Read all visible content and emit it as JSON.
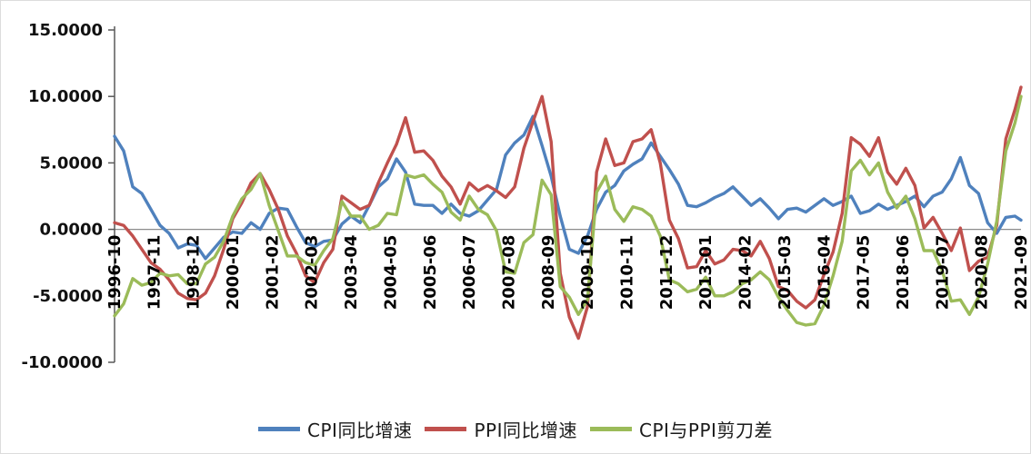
{
  "chart_data": {
    "type": "line",
    "title": "",
    "xlabel": "",
    "ylabel": "",
    "ylim": [
      -10,
      15
    ],
    "grid": false,
    "legend_position": "bottom",
    "y_ticks": [
      15,
      10,
      5,
      0,
      -5,
      -10
    ],
    "y_tick_labels": [
      "15.0000",
      "10.0000",
      "5.0000",
      "0.0000",
      "-5.0000",
      "-10.0000"
    ],
    "x_tick_labels": [
      "1996-10",
      "1997-11",
      "1998-12",
      "2000-01",
      "2001-02",
      "2002-03",
      "2003-04",
      "2004-05",
      "2005-06",
      "2006-07",
      "2007-08",
      "2008-09",
      "2009-10",
      "2010-11",
      "2011-12",
      "2013-01",
      "2014-02",
      "2015-03",
      "2016-04",
      "2017-05",
      "2018-06",
      "2019-07",
      "2020-08",
      "2021-09"
    ],
    "x_range_months": [
      "1996-10",
      "2021-09"
    ],
    "sample_dates": [
      "1996-10",
      "1997-01",
      "1997-04",
      "1997-07",
      "1997-10",
      "1998-01",
      "1998-04",
      "1998-07",
      "1998-10",
      "1999-01",
      "1999-04",
      "1999-07",
      "1999-10",
      "2000-01",
      "2000-04",
      "2000-07",
      "2000-10",
      "2001-01",
      "2001-04",
      "2001-07",
      "2001-10",
      "2002-01",
      "2002-04",
      "2002-07",
      "2002-10",
      "2003-01",
      "2003-04",
      "2003-07",
      "2003-10",
      "2004-01",
      "2004-04",
      "2004-07",
      "2004-10",
      "2005-01",
      "2005-04",
      "2005-07",
      "2005-10",
      "2006-01",
      "2006-04",
      "2006-07",
      "2006-10",
      "2007-01",
      "2007-04",
      "2007-07",
      "2007-10",
      "2008-01",
      "2008-04",
      "2008-07",
      "2008-10",
      "2009-01",
      "2009-04",
      "2009-07",
      "2009-10",
      "2010-01",
      "2010-04",
      "2010-07",
      "2010-10",
      "2011-01",
      "2011-04",
      "2011-07",
      "2011-10",
      "2012-01",
      "2012-04",
      "2012-07",
      "2012-10",
      "2013-01",
      "2013-04",
      "2013-07",
      "2013-10",
      "2014-01",
      "2014-04",
      "2014-07",
      "2014-10",
      "2015-01",
      "2015-04",
      "2015-07",
      "2015-10",
      "2016-01",
      "2016-04",
      "2016-07",
      "2016-10",
      "2017-01",
      "2017-04",
      "2017-07",
      "2017-10",
      "2018-01",
      "2018-04",
      "2018-07",
      "2018-10",
      "2019-01",
      "2019-04",
      "2019-07",
      "2019-10",
      "2020-01",
      "2020-04",
      "2020-07",
      "2020-10",
      "2021-01",
      "2021-04",
      "2021-07",
      "2021-09"
    ],
    "series": [
      {
        "name": "CPI同比增速",
        "color": "#4F81BD",
        "values": [
          7.0,
          5.9,
          3.2,
          2.7,
          1.5,
          0.3,
          -0.3,
          -1.4,
          -1.1,
          -1.2,
          -2.2,
          -1.4,
          -0.6,
          -0.2,
          -0.3,
          0.5,
          0.0,
          1.2,
          1.6,
          1.5,
          0.2,
          -1.0,
          -1.3,
          -0.9,
          -0.8,
          0.4,
          1.0,
          0.5,
          1.8,
          3.2,
          3.8,
          5.3,
          4.3,
          1.9,
          1.8,
          1.8,
          1.2,
          1.9,
          1.2,
          1.0,
          1.4,
          2.2,
          3.0,
          5.6,
          6.5,
          7.1,
          8.5,
          6.3,
          4.0,
          1.0,
          -1.5,
          -1.8,
          -0.5,
          1.5,
          2.8,
          3.3,
          4.4,
          4.9,
          5.3,
          6.5,
          5.5,
          4.5,
          3.4,
          1.8,
          1.7,
          2.0,
          2.4,
          2.7,
          3.2,
          2.5,
          1.8,
          2.3,
          1.6,
          0.8,
          1.5,
          1.6,
          1.3,
          1.8,
          2.3,
          1.8,
          2.1,
          2.5,
          1.2,
          1.4,
          1.9,
          1.5,
          1.8,
          2.1,
          2.5,
          1.7,
          2.5,
          2.8,
          3.8,
          5.4,
          3.3,
          2.7,
          0.5,
          -0.3,
          0.9,
          1.0,
          0.7
        ]
      },
      {
        "name": "PPI同比增速",
        "color": "#C0504D",
        "values": [
          0.5,
          0.3,
          -0.5,
          -1.5,
          -2.5,
          -3.0,
          -3.8,
          -4.8,
          -5.2,
          -5.3,
          -4.8,
          -3.5,
          -1.5,
          0.8,
          2.0,
          3.5,
          4.2,
          3.0,
          1.5,
          -0.5,
          -1.8,
          -3.5,
          -4.0,
          -2.5,
          -1.5,
          2.5,
          2.0,
          1.5,
          1.8,
          3.5,
          5.0,
          6.4,
          8.4,
          5.8,
          5.9,
          5.2,
          4.0,
          3.2,
          1.9,
          3.5,
          2.9,
          3.3,
          2.9,
          2.4,
          3.2,
          6.1,
          8.1,
          10.0,
          6.6,
          -3.3,
          -6.6,
          -8.2,
          -5.8,
          4.3,
          6.8,
          4.8,
          5.0,
          6.6,
          6.8,
          7.5,
          5.0,
          0.7,
          -0.7,
          -2.9,
          -2.8,
          -1.6,
          -2.6,
          -2.3,
          -1.5,
          -1.6,
          -2.0,
          -0.9,
          -2.2,
          -4.3,
          -4.6,
          -5.4,
          -5.9,
          -5.3,
          -3.4,
          -1.7,
          1.2,
          6.9,
          6.4,
          5.5,
          6.9,
          4.3,
          3.4,
          4.6,
          3.3,
          0.1,
          0.9,
          -0.3,
          -1.6,
          0.1,
          -3.1,
          -2.4,
          -2.1,
          0.3,
          6.8,
          9.0,
          10.7
        ]
      },
      {
        "name": "CPI与PPI剪刀差",
        "color": "#9BBB59",
        "values": [
          -6.5,
          -5.6,
          -3.7,
          -4.2,
          -4.0,
          -3.3,
          -3.5,
          -3.4,
          -4.1,
          -4.1,
          -2.6,
          -2.1,
          -0.9,
          1.0,
          2.3,
          3.0,
          4.2,
          1.8,
          -0.1,
          -2.0,
          -2.0,
          -2.5,
          -2.7,
          -1.6,
          -0.7,
          2.1,
          1.0,
          1.0,
          0.0,
          0.3,
          1.2,
          1.1,
          4.1,
          3.9,
          4.1,
          3.4,
          2.8,
          1.3,
          0.7,
          2.5,
          1.5,
          1.1,
          -0.1,
          -3.2,
          -3.3,
          -1.0,
          -0.4,
          3.7,
          2.6,
          -4.3,
          -5.1,
          -6.4,
          -5.3,
          2.8,
          4.0,
          1.5,
          0.6,
          1.7,
          1.5,
          1.0,
          -0.5,
          -3.8,
          -4.1,
          -4.7,
          -4.5,
          -3.6,
          -5.0,
          -5.0,
          -4.7,
          -4.1,
          -3.8,
          -3.2,
          -3.8,
          -5.1,
          -6.1,
          -7.0,
          -7.2,
          -7.1,
          -5.7,
          -3.5,
          -0.9,
          4.4,
          5.2,
          4.1,
          5.0,
          2.8,
          1.6,
          2.5,
          0.8,
          -1.6,
          -1.6,
          -3.1,
          -5.4,
          -5.3,
          -6.4,
          -5.1,
          -2.6,
          0.6,
          5.9,
          8.0,
          10.0
        ]
      }
    ]
  }
}
